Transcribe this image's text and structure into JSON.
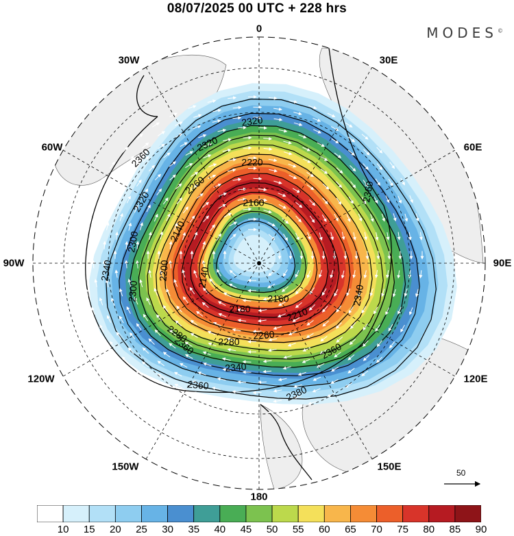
{
  "header": {
    "title": "08/07/2025  00 UTC  + 228 hrs",
    "brand": "MODES",
    "brand_mark": "©"
  },
  "longitude_labels": {
    "top": "0",
    "bottom": "180",
    "left": "90W",
    "right": "90E",
    "l30w": "30W",
    "l60w": "60W",
    "l120w": "120W",
    "l150w": "150W",
    "l30e": "30E",
    "l60e": "60E",
    "l120e": "120E",
    "l150e": "150E"
  },
  "contour_labels": [
    "2320",
    "2320",
    "2220",
    "2360",
    "2260",
    "2320",
    "2160",
    "2140",
    "2300",
    "2200",
    "2300",
    "2340",
    "2360",
    "2140",
    "2180",
    "2160",
    "2210",
    "2280",
    "2260",
    "2280",
    "2340",
    "2360",
    "2360",
    "2380",
    "2340",
    "2360"
  ],
  "wind_reference": {
    "label": "50"
  },
  "colorbar": {
    "colors": [
      "#ffffff",
      "#d6f0fb",
      "#b2e0f7",
      "#8ecdf0",
      "#67b3e6",
      "#4a8fd0",
      "#3f9e97",
      "#49ad55",
      "#7cc24f",
      "#bcd94c",
      "#f4e05a",
      "#f8b64b",
      "#f58c36",
      "#ec5f2a",
      "#d8342a",
      "#b61b22",
      "#8e1418"
    ],
    "tick_labels": [
      "10",
      "15",
      "20",
      "25",
      "30",
      "35",
      "40",
      "45",
      "50",
      "55",
      "60",
      "65",
      "70",
      "75",
      "80",
      "85",
      "90"
    ]
  }
}
